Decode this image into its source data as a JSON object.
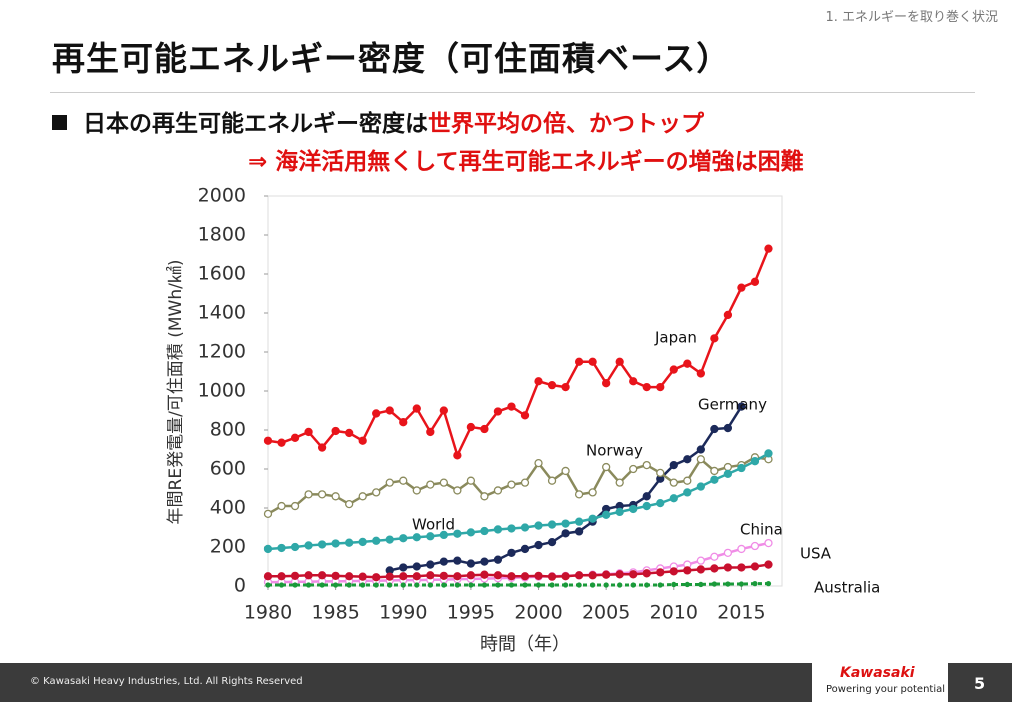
{
  "header": {
    "section": "1. エネルギーを取り巻く状況",
    "title": "再生可能エネルギー密度（可住面積ベース）"
  },
  "bullets": [
    {
      "text": "日本の再生可能エネルギー密度は",
      "highlight": "世界平均の倍、かつトップ"
    },
    {
      "text": "⇒  海洋活用無くして再生可能エネルギーの増強は困難"
    }
  ],
  "footer": {
    "copyright": "© Kawasaki Heavy Industries, Ltd. All Rights Reserved",
    "brand": "Kawasaki",
    "tagline": "Powering your potential",
    "page": "5"
  },
  "chart_data": {
    "type": "line",
    "x_label": "時間（年）",
    "y_label": "年間RE発電量/可住面積 (MWh/㎢)",
    "x": [
      1980,
      1981,
      1982,
      1983,
      1984,
      1985,
      1986,
      1987,
      1988,
      1989,
      1990,
      1991,
      1992,
      1993,
      1994,
      1995,
      1996,
      1997,
      1998,
      1999,
      2000,
      2001,
      2002,
      2003,
      2004,
      2005,
      2006,
      2007,
      2008,
      2009,
      2010,
      2011,
      2012,
      2013,
      2014,
      2015,
      2016,
      2017
    ],
    "xlim": [
      1980,
      2018
    ],
    "xticks": [
      1980,
      1985,
      1990,
      1995,
      2000,
      2005,
      2010,
      2015
    ],
    "ylim": [
      0,
      2000
    ],
    "yticks": [
      0,
      200,
      400,
      600,
      800,
      1000,
      1200,
      1400,
      1600,
      1800,
      2000
    ],
    "series": [
      {
        "name": "Japan",
        "color": "#e8141b",
        "values": [
          745,
          735,
          760,
          790,
          710,
          795,
          785,
          745,
          885,
          900,
          840,
          910,
          790,
          900,
          670,
          815,
          805,
          895,
          920,
          875,
          1050,
          1030,
          1020,
          1150,
          1150,
          1040,
          1150,
          1050,
          1020,
          1020,
          1110,
          1140,
          1090,
          1270,
          1390,
          1530,
          1560,
          1730
        ]
      },
      {
        "name": "Germany",
        "color": "#1c2a5a",
        "values": [
          null,
          null,
          null,
          null,
          null,
          null,
          null,
          null,
          null,
          80,
          95,
          100,
          110,
          125,
          130,
          115,
          125,
          135,
          170,
          190,
          210,
          225,
          270,
          280,
          330,
          395,
          410,
          415,
          460,
          550,
          620,
          650,
          700,
          805,
          810,
          920,
          null,
          null
        ]
      },
      {
        "name": "Norway",
        "color": "#8a8a5c",
        "values": [
          370,
          410,
          410,
          470,
          470,
          460,
          420,
          460,
          480,
          530,
          540,
          490,
          520,
          530,
          490,
          540,
          460,
          490,
          520,
          530,
          630,
          540,
          590,
          470,
          480,
          610,
          530,
          600,
          620,
          580,
          530,
          540,
          650,
          590,
          610,
          620,
          660,
          650
        ]
      },
      {
        "name": "World",
        "color": "#2fa8a8",
        "values": [
          190,
          195,
          200,
          208,
          213,
          218,
          222,
          226,
          232,
          238,
          245,
          250,
          255,
          262,
          268,
          275,
          282,
          290,
          295,
          300,
          310,
          315,
          320,
          330,
          345,
          365,
          380,
          395,
          410,
          425,
          450,
          480,
          510,
          545,
          575,
          605,
          640,
          680
        ]
      },
      {
        "name": "China",
        "color": "#f08ce6",
        "values": [
          20,
          20,
          22,
          22,
          24,
          24,
          25,
          26,
          27,
          28,
          30,
          30,
          32,
          33,
          35,
          36,
          38,
          40,
          42,
          44,
          48,
          50,
          52,
          55,
          58,
          60,
          65,
          70,
          80,
          90,
          100,
          110,
          130,
          150,
          170,
          190,
          205,
          220
        ]
      },
      {
        "name": "USA",
        "color": "#c8102e",
        "values": [
          50,
          50,
          52,
          55,
          55,
          52,
          50,
          48,
          45,
          48,
          50,
          50,
          55,
          52,
          50,
          55,
          58,
          55,
          50,
          50,
          52,
          48,
          50,
          55,
          55,
          58,
          60,
          60,
          65,
          70,
          75,
          80,
          85,
          90,
          95,
          95,
          100,
          110
        ]
      },
      {
        "name": "Australia",
        "color": "#1a9a3a",
        "values": [
          5,
          5,
          5,
          5,
          5,
          5,
          5,
          5,
          5,
          5,
          5,
          5,
          5,
          5,
          5,
          5,
          5,
          5,
          5,
          5,
          5,
          5,
          5,
          5,
          5,
          5,
          5,
          5,
          5,
          5,
          8,
          8,
          8,
          10,
          10,
          10,
          12,
          12
        ]
      }
    ]
  }
}
